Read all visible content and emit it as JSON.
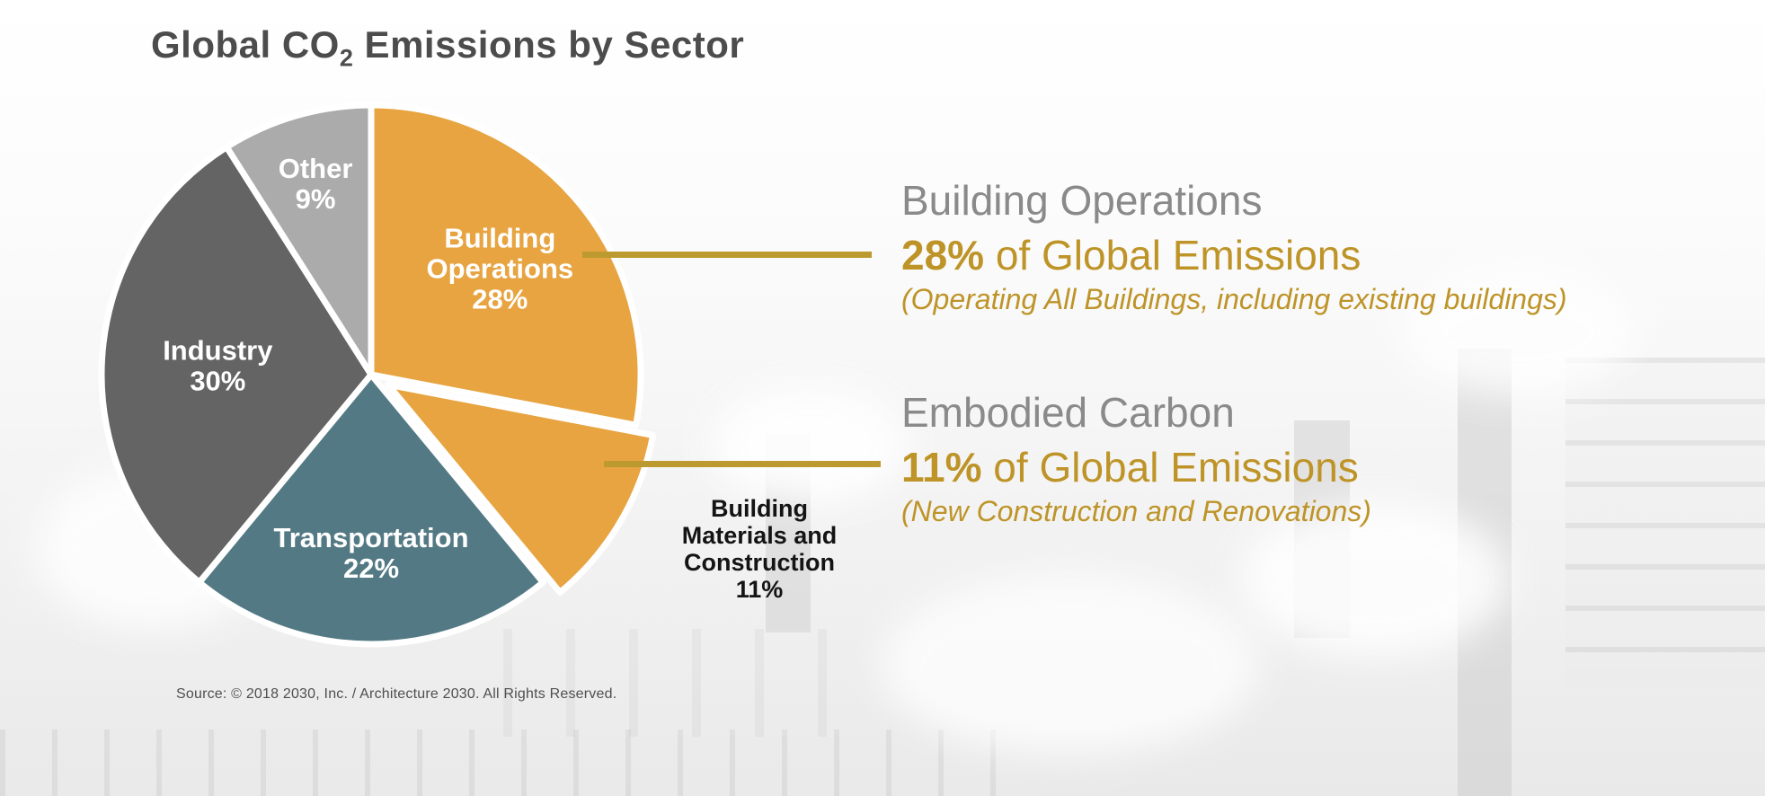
{
  "title": {
    "prefix": "Global CO",
    "subscript": "2",
    "suffix": " Emissions by Sector"
  },
  "chart_data": {
    "type": "pie",
    "title": "Global CO2 Emissions by Sector",
    "units": "percent of global CO2 emissions",
    "direction": "clockwise",
    "start_angle_deg": 0,
    "legend": "none",
    "categories": [
      "Building Operations",
      "Building Materials and Construction",
      "Transportation",
      "Industry",
      "Other"
    ],
    "values": [
      28,
      11,
      22,
      30,
      9
    ],
    "slices": [
      {
        "label": "Building Operations",
        "value": 28,
        "color_key": "orange",
        "exploded": false,
        "label_inside": true,
        "label_lines": [
          "Building",
          "Operations",
          "28%"
        ],
        "label_r_frac": 0.62
      },
      {
        "label": "Building Materials and Construction",
        "value": 11,
        "color_key": "orange",
        "exploded": true,
        "label_inside": false,
        "outside_label_lines": [
          "Building",
          "Materials and",
          "Construction",
          "11%"
        ]
      },
      {
        "label": "Transportation",
        "value": 22,
        "color_key": "teal",
        "exploded": false,
        "label_inside": true,
        "label_lines": [
          "Transportation",
          "22%"
        ],
        "label_r_frac": 0.66
      },
      {
        "label": "Industry",
        "value": 30,
        "color_key": "dark_gray",
        "exploded": false,
        "label_inside": true,
        "label_lines": [
          "Industry",
          "30%"
        ],
        "label_r_frac": 0.57
      },
      {
        "label": "Other",
        "value": 9,
        "color_key": "light_gray",
        "exploded": false,
        "label_inside": true,
        "label_lines": [
          "Other",
          "9%"
        ],
        "label_r_frac": 0.74
      }
    ]
  },
  "annotations": [
    {
      "heading": "Building Operations",
      "stat_bold": "28%",
      "stat_rest": " of Global Emissions",
      "note": "(Operating All Buildings, including existing buildings)"
    },
    {
      "heading": "Embodied Carbon",
      "stat_bold": "11%",
      "stat_rest": " of Global Emissions",
      "note": "(New Construction and Renovations)"
    }
  ],
  "source": "Source: © 2018 2030, Inc. / Architecture 2030. All Rights Reserved.",
  "colors": {
    "orange": "#E7A440",
    "teal": "#537A84",
    "dark_gray": "#646464",
    "light_gray": "#ABABAB",
    "pie_label_white": "#FFFFFF",
    "gold_text": "#BE9428",
    "gold_line": "#BD9A2F",
    "annotation_gray": "#8A8A8A",
    "title_gray": "#4C4C4C",
    "label_black": "#141414",
    "source_gray": "#4F4F4F"
  }
}
